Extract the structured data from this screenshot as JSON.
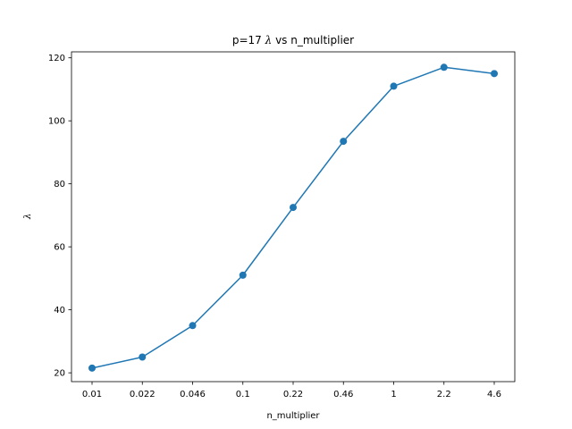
{
  "chart_data": {
    "type": "line",
    "title_prefix": "p=17 ",
    "title_symbol": "λ",
    "title_suffix": " vs n_multiplier",
    "xlabel": "n_multiplier",
    "ylabel": "λ",
    "x_scale": "categorical",
    "categories": [
      "0.01",
      "0.022",
      "0.046",
      "0.1",
      "0.22",
      "0.46",
      "1",
      "2.2",
      "4.6"
    ],
    "series": [
      {
        "values": [
          21.5,
          25.0,
          35.0,
          51.0,
          72.5,
          93.5,
          111.0,
          117.0,
          115.0
        ]
      }
    ],
    "y_ticks": [
      20,
      40,
      60,
      80,
      100,
      120
    ],
    "ylim": [
      17.2,
      121.9
    ],
    "grid": false,
    "markers": true
  },
  "colors": {
    "series": "#1f77b4",
    "axes": "#000000",
    "background": "#ffffff"
  }
}
